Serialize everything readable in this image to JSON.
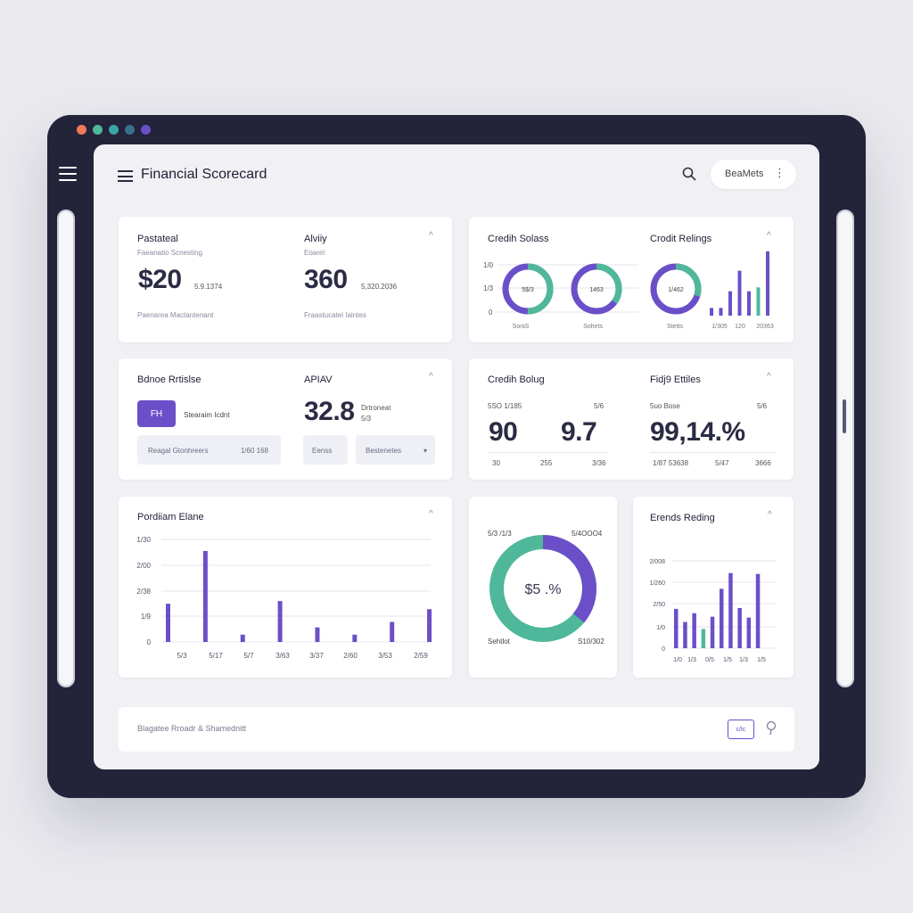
{
  "header": {
    "title": "Financial Scorecard",
    "pill_label": "BeaMets",
    "more": "⋮"
  },
  "colors": {
    "accent": "#6b4fc8",
    "teal": "#4fb89a",
    "frame": "#23233a"
  },
  "card1": {
    "left_title": "Pastateal",
    "left_sub": "Faeanatio Scnesting",
    "left_value": "$20",
    "left_value_note": "5.9.1374",
    "left_foot": "Paenarea Mactantenant",
    "right_title": "Alviiy",
    "right_sub": "Eoarel",
    "right_value": "360",
    "right_value_note": "5,320.2036",
    "right_foot": "Fraastucatei Iaintes"
  },
  "card2": {
    "left_title": "Credih Solass",
    "right_title": "Crodit Relings",
    "y_ticks": [
      "1/0",
      "1/3",
      "0"
    ],
    "donut1_label": "5$/3",
    "donut2_label": "1463",
    "donut3_label": "1/462",
    "donut_foot1": "SoniS",
    "donut_foot2": "Sohets",
    "donut_foot3": "Stetts",
    "bar_x_ticks": [
      "1/305",
      "120",
      "20363"
    ],
    "bars": [
      0.12,
      0.12,
      0.38,
      0.7,
      0.38,
      0.44,
      1.0
    ],
    "bar_highlight_index": 5
  },
  "card3": {
    "left_title": "Bdnoe Rrtislse",
    "button_label": "FH",
    "button_note": "Stearaim Icdnt",
    "field1_label": "Reagal Gtonhreers",
    "field1_value": "1/60 168",
    "right_title": "APIAV",
    "right_value": "32.8",
    "right_value_note1": "Drtroneat",
    "right_value_note2": "5/3",
    "field2_label": "Eenss",
    "field3_label": "Bestenetes"
  },
  "card4": {
    "left_title": "Credih Bolug",
    "left_top_a": "5SO 1/185",
    "left_top_b": "5/6",
    "left_value_a": "90",
    "left_value_b": "9.7",
    "left_foot_a": "30",
    "left_foot_b": "255",
    "left_foot_c": "3/36",
    "right_title": "Fidj9 Ettiles",
    "right_top_a": "5uo Bose",
    "right_top_b": "5/6",
    "right_value": "99,14.%",
    "right_foot_a": "1/87 53638",
    "right_foot_b": "5/47",
    "right_foot_c": "3666"
  },
  "card5": {
    "title": "Pordiiam Elane",
    "y_ticks": [
      "1/30",
      "2/00",
      "2/38",
      "1/9",
      "0"
    ],
    "x_ticks": [
      "5/3",
      "5/17",
      "5/7",
      "3/63",
      "3/37",
      "2/60",
      "3/53",
      "2/59"
    ],
    "bars": [
      0.42,
      1.0,
      0.08,
      0.45,
      0.16,
      0.08,
      0.22,
      0.36
    ]
  },
  "card6": {
    "top_left": "5/3 /1/3",
    "top_right": "5/4OOO4",
    "center": "$5 .%",
    "bottom_left": "Sehtlot",
    "bottom_right": "S10/302",
    "share": 0.36
  },
  "card7": {
    "title": "Erends Reding",
    "y_ticks": [
      "2/008",
      "1/260",
      "2/50",
      "1/0",
      "0"
    ],
    "x_ticks": [
      "1/0",
      "1/3",
      "0/5",
      "1/5",
      "1/3",
      "1/5"
    ],
    "bars": [
      0.45,
      0.3,
      0.4,
      0.22,
      0.36,
      0.68,
      0.86,
      0.46,
      0.35,
      0.85
    ],
    "bar_highlight_index": 3
  },
  "footer": {
    "label": "Blagatee Rroadr & Shamednitt",
    "button_label": "c/tc"
  }
}
